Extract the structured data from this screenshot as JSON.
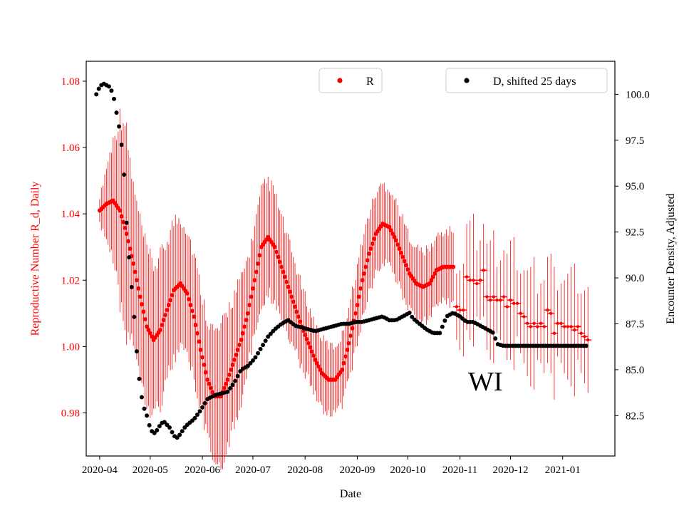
{
  "chart_data": {
    "type": "scatter",
    "title": "",
    "annotation": "WI",
    "xlabel": "Date",
    "ylabel_left": "Reproductive Number R_d, Daily",
    "ylabel_right": "Encounter Density, Adjusted",
    "colors": {
      "r_series": "#ff0000",
      "d_series": "#000000",
      "axes": "#000000"
    },
    "x_ticks": [
      "2020-04",
      "2020-05",
      "2020-06",
      "2020-07",
      "2020-08",
      "2020-09",
      "2020-10",
      "2020-11",
      "2020-12",
      "2021-01"
    ],
    "x_range_days": [
      -8,
      306
    ],
    "y_left": {
      "range": [
        0.967,
        1.086
      ],
      "ticks": [
        0.98,
        1.0,
        1.02,
        1.04,
        1.06,
        1.08
      ],
      "tick_labels": [
        "0.98",
        "1.00",
        "1.02",
        "1.04",
        "1.06",
        "1.08"
      ]
    },
    "y_right": {
      "range": [
        80.3,
        101.8
      ],
      "ticks": [
        82.5,
        85.0,
        87.5,
        90.0,
        92.5,
        95.0,
        97.5,
        100.0
      ],
      "tick_labels": [
        "82.5",
        "85.0",
        "87.5",
        "90.0",
        "92.5",
        "95.0",
        "97.5",
        "100.0"
      ]
    },
    "legend": [
      {
        "label": "R",
        "position": "top-center",
        "color": "#ff0000"
      },
      {
        "label": "D, shifted 25 days",
        "position": "top-right",
        "color": "#000000"
      }
    ],
    "series_R": {
      "name": "R",
      "x_unit": "days since 2020-04-01",
      "dense_keys": [
        [
          0,
          1.041
        ],
        [
          4,
          1.043
        ],
        [
          8,
          1.044
        ],
        [
          12,
          1.041
        ],
        [
          16,
          1.034
        ],
        [
          20,
          1.025
        ],
        [
          24,
          1.015
        ],
        [
          28,
          1.006
        ],
        [
          32,
          1.002
        ],
        [
          36,
          1.005
        ],
        [
          40,
          1.011
        ],
        [
          44,
          1.017
        ],
        [
          48,
          1.019
        ],
        [
          52,
          1.016
        ],
        [
          56,
          1.009
        ],
        [
          60,
          0.999
        ],
        [
          64,
          0.99
        ],
        [
          68,
          0.985
        ],
        [
          72,
          0.985
        ],
        [
          76,
          0.99
        ],
        [
          80,
          0.996
        ],
        [
          84,
          1.002
        ],
        [
          88,
          1.01
        ],
        [
          92,
          1.02
        ],
        [
          96,
          1.03
        ],
        [
          100,
          1.033
        ],
        [
          104,
          1.03
        ],
        [
          108,
          1.024
        ],
        [
          112,
          1.018
        ],
        [
          116,
          1.012
        ],
        [
          120,
          1.006
        ],
        [
          124,
          1.001
        ],
        [
          128,
          0.996
        ],
        [
          132,
          0.992
        ],
        [
          136,
          0.99
        ],
        [
          140,
          0.99
        ],
        [
          144,
          0.993
        ],
        [
          148,
          1.001
        ],
        [
          152,
          1.01
        ],
        [
          156,
          1.02
        ],
        [
          160,
          1.028
        ],
        [
          164,
          1.034
        ],
        [
          168,
          1.037
        ],
        [
          172,
          1.036
        ],
        [
          176,
          1.032
        ],
        [
          180,
          1.027
        ],
        [
          184,
          1.022
        ],
        [
          188,
          1.019
        ],
        [
          192,
          1.018
        ],
        [
          196,
          1.019
        ],
        [
          200,
          1.023
        ],
        [
          204,
          1.024
        ],
        [
          210,
          1.024
        ]
      ],
      "dense_range": [
        0,
        210
      ],
      "dense_step": 1,
      "band_keys": [
        [
          0,
          0.004
        ],
        [
          8,
          0.018
        ],
        [
          14,
          0.033
        ],
        [
          20,
          0.023
        ],
        [
          34,
          0.022
        ],
        [
          48,
          0.02
        ],
        [
          62,
          0.018
        ],
        [
          76,
          0.021
        ],
        [
          90,
          0.016
        ],
        [
          100,
          0.017
        ],
        [
          112,
          0.014
        ],
        [
          124,
          0.011
        ],
        [
          140,
          0.01
        ],
        [
          156,
          0.012
        ],
        [
          168,
          0.012
        ],
        [
          186,
          0.011
        ],
        [
          200,
          0.01
        ],
        [
          210,
          0.011
        ]
      ],
      "sparse_points": [
        [
          212,
          1.012
        ],
        [
          214,
          1.011
        ],
        [
          216,
          1.011
        ],
        [
          218,
          1.021
        ],
        [
          220,
          1.02
        ],
        [
          222,
          1.02
        ],
        [
          224,
          1.019
        ],
        [
          226,
          1.02
        ],
        [
          228,
          1.023
        ],
        [
          230,
          1.015
        ],
        [
          232,
          1.014
        ],
        [
          234,
          1.015
        ],
        [
          236,
          1.014
        ],
        [
          238,
          1.014
        ],
        [
          240,
          1.015
        ],
        [
          242,
          1.012
        ],
        [
          244,
          1.014
        ],
        [
          246,
          1.013
        ],
        [
          248,
          1.013
        ],
        [
          250,
          1.01
        ],
        [
          252,
          1.009
        ],
        [
          254,
          1.007
        ],
        [
          256,
          1.006
        ],
        [
          258,
          1.007
        ],
        [
          260,
          1.006
        ],
        [
          262,
          1.007
        ],
        [
          264,
          1.006
        ],
        [
          266,
          1.011
        ],
        [
          268,
          1.01
        ],
        [
          270,
          1.004
        ],
        [
          272,
          1.007
        ],
        [
          274,
          1.007
        ],
        [
          276,
          1.006
        ],
        [
          278,
          1.006
        ],
        [
          280,
          1.006
        ],
        [
          282,
          1.005
        ],
        [
          284,
          1.006
        ],
        [
          286,
          1.004
        ],
        [
          288,
          1.003
        ],
        [
          290,
          1.002
        ]
      ],
      "sparse_err": [
        0.01,
        0.012,
        0.014,
        0.016,
        0.018,
        0.02
      ]
    },
    "series_D": {
      "name": "D, shifted 25 days",
      "x_unit": "days since 2020-04-01",
      "keys": [
        [
          -2,
          100.0
        ],
        [
          0,
          100.4
        ],
        [
          2,
          100.6
        ],
        [
          4,
          100.5
        ],
        [
          6,
          100.4
        ],
        [
          8,
          100.0
        ],
        [
          10,
          99.0
        ],
        [
          12,
          98.0
        ],
        [
          14,
          96.5
        ],
        [
          16,
          93.0
        ],
        [
          18,
          90.5
        ],
        [
          20,
          88.5
        ],
        [
          22,
          86.0
        ],
        [
          24,
          84.0
        ],
        [
          26,
          83.0
        ],
        [
          28,
          82.5
        ],
        [
          30,
          81.8
        ],
        [
          32,
          81.5
        ],
        [
          34,
          81.7
        ],
        [
          36,
          82.0
        ],
        [
          38,
          82.2
        ],
        [
          40,
          82.0
        ],
        [
          42,
          81.8
        ],
        [
          44,
          81.4
        ],
        [
          46,
          81.3
        ],
        [
          48,
          81.5
        ],
        [
          50,
          81.8
        ],
        [
          52,
          82.0
        ],
        [
          56,
          82.3
        ],
        [
          60,
          82.8
        ],
        [
          64,
          83.4
        ],
        [
          68,
          83.6
        ],
        [
          72,
          83.7
        ],
        [
          76,
          83.8
        ],
        [
          80,
          84.3
        ],
        [
          84,
          85.0
        ],
        [
          88,
          85.2
        ],
        [
          92,
          85.6
        ],
        [
          96,
          86.2
        ],
        [
          100,
          86.8
        ],
        [
          104,
          87.2
        ],
        [
          108,
          87.5
        ],
        [
          112,
          87.7
        ],
        [
          116,
          87.4
        ],
        [
          120,
          87.3
        ],
        [
          124,
          87.2
        ],
        [
          128,
          87.1
        ],
        [
          132,
          87.2
        ],
        [
          136,
          87.3
        ],
        [
          140,
          87.4
        ],
        [
          144,
          87.5
        ],
        [
          148,
          87.5
        ],
        [
          152,
          87.6
        ],
        [
          156,
          87.6
        ],
        [
          160,
          87.7
        ],
        [
          164,
          87.8
        ],
        [
          168,
          87.9
        ],
        [
          172,
          87.7
        ],
        [
          176,
          87.7
        ],
        [
          180,
          87.9
        ],
        [
          184,
          88.1
        ],
        [
          186,
          87.8
        ],
        [
          190,
          87.5
        ],
        [
          194,
          87.2
        ],
        [
          198,
          87.0
        ],
        [
          202,
          87.0
        ],
        [
          206,
          87.9
        ],
        [
          210,
          88.1
        ],
        [
          214,
          87.9
        ],
        [
          218,
          87.6
        ],
        [
          222,
          87.6
        ],
        [
          226,
          87.4
        ],
        [
          230,
          87.2
        ],
        [
          234,
          87.0
        ],
        [
          236,
          86.4
        ],
        [
          240,
          86.3
        ],
        [
          290,
          86.3
        ]
      ],
      "range": [
        -2,
        290
      ],
      "step": 1.5
    }
  }
}
